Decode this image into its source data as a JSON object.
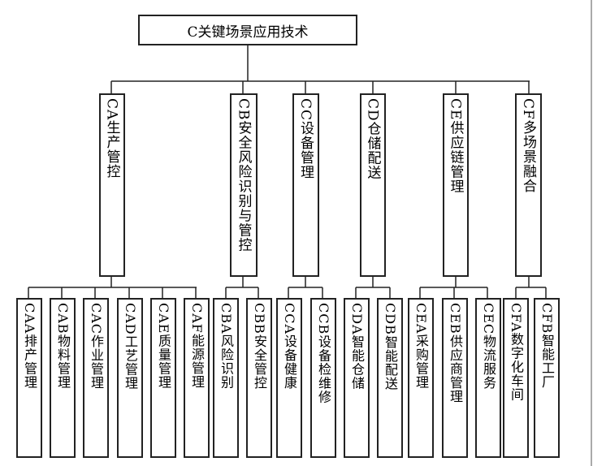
{
  "root": {
    "label": "C关键场景应用技术"
  },
  "groups": [
    {
      "label": "CA生产管控",
      "children": [
        "CAA排产管理",
        "CAB物料管理",
        "CAC作业管理",
        "CAD工艺管理",
        "CAE质量管理",
        "CAF能源管理"
      ]
    },
    {
      "label": "CB安全风险识别与管控",
      "children": [
        "CBA风险识别",
        "CBB安全管控"
      ]
    },
    {
      "label": "CC设备管理",
      "children": [
        "CCA设备健康",
        "CCB设备检维修"
      ]
    },
    {
      "label": "CD仓储配送",
      "children": [
        "CDA智能仓储",
        "CDB智能配送"
      ]
    },
    {
      "label": "CE供应链管理",
      "children": [
        "CEA采购管理",
        "CEB供应商管理",
        "CEC物流服务"
      ]
    },
    {
      "label": "CF多场景融合",
      "children": [
        "CFA数字化车间",
        "CFB智能工厂"
      ]
    }
  ]
}
